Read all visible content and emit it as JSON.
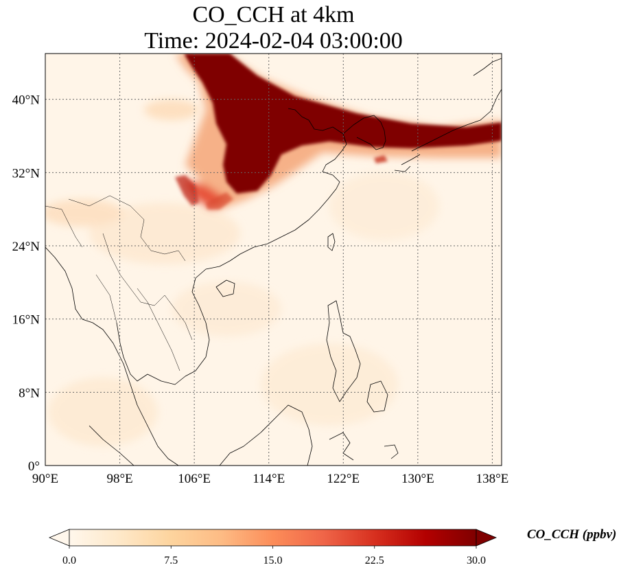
{
  "title": {
    "line1": "CO_CCH at 4km",
    "line2": "Time: 2024-02-04 03:00:00"
  },
  "map": {
    "lon_range": [
      90,
      139
    ],
    "lat_range": [
      0,
      45
    ],
    "lon_ticks": [
      {
        "value": 90,
        "label": "90°E"
      },
      {
        "value": 98,
        "label": "98°E"
      },
      {
        "value": 106,
        "label": "106°E"
      },
      {
        "value": 114,
        "label": "114°E"
      },
      {
        "value": 122,
        "label": "122°E"
      },
      {
        "value": 130,
        "label": "130°E"
      },
      {
        "value": 138,
        "label": "138°E"
      }
    ],
    "lat_ticks": [
      {
        "value": 0,
        "label": "0°"
      },
      {
        "value": 8,
        "label": "8°N"
      },
      {
        "value": 16,
        "label": "16°N"
      },
      {
        "value": 24,
        "label": "24°N"
      },
      {
        "value": 32,
        "label": "32°N"
      },
      {
        "value": 40,
        "label": "40°N"
      }
    ],
    "gridlines": true,
    "colors": {
      "background": "#fff5e8",
      "plume": "#7f0000",
      "coastline": "#000000",
      "gridline": "#666666"
    }
  },
  "colorbar": {
    "label": "CO_CCH (ppbv)",
    "range": [
      0,
      30
    ],
    "ticks": [
      {
        "value": 0,
        "label": "0.0"
      },
      {
        "value": 7.5,
        "label": "7.5"
      },
      {
        "value": 15,
        "label": "15.0"
      },
      {
        "value": 22.5,
        "label": "22.5"
      },
      {
        "value": 30,
        "label": "30.0"
      }
    ],
    "extend": "both",
    "colormap": [
      "#fff7ec",
      "#fee8c8",
      "#fdd49e",
      "#fdbb84",
      "#fc8d59",
      "#ef6548",
      "#d7301f",
      "#b30000",
      "#7f0000"
    ]
  }
}
